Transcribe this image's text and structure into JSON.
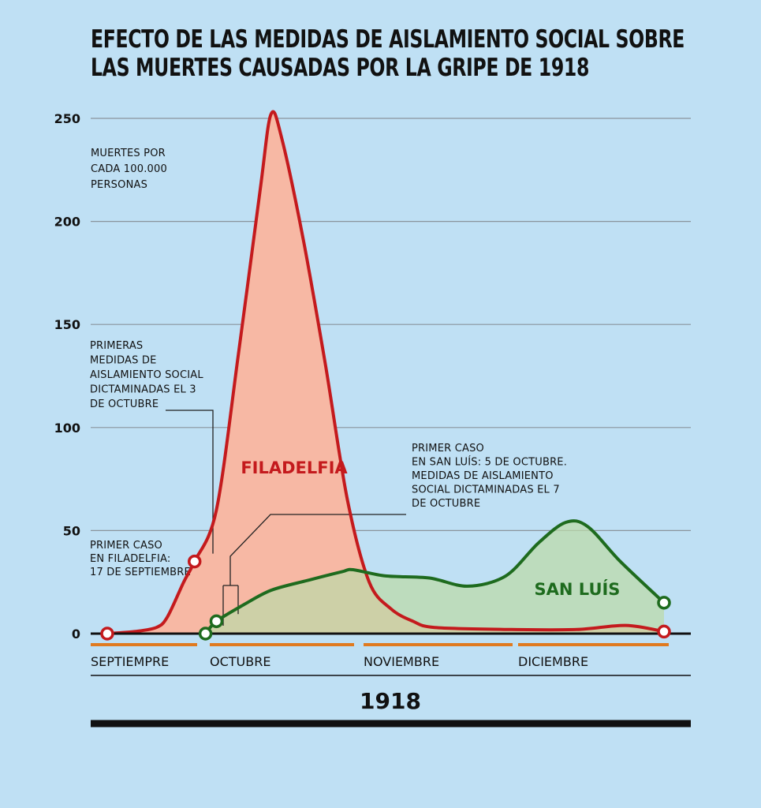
{
  "chart_data": {
    "type": "area",
    "title_lines": [
      "EFECTO DE LAS MEDIDAS DE AISLAMIENTO SOCIAL SOBRE",
      "LAS MUERTES CAUSADAS POR LA GRIPE DE 1918"
    ],
    "ylabel_lines": [
      "MUERTES POR",
      "CADA 100.000",
      "PERSONAS"
    ],
    "ylim": [
      0,
      250
    ],
    "yticks": [
      0,
      50,
      100,
      150,
      200,
      250
    ],
    "grid": true,
    "x_domain": [
      "1918-09-17",
      "1918-12-28"
    ],
    "x_months": [
      {
        "label": "SEPTIEMPRE",
        "start": "1918-09-17",
        "end": "1918-09-30"
      },
      {
        "label": "OCTUBRE",
        "start": "1918-10-01",
        "end": "1918-10-31"
      },
      {
        "label": "NOVIEMBRE",
        "start": "1918-11-01",
        "end": "1918-11-30"
      },
      {
        "label": "DICIEMBRE",
        "start": "1918-12-01",
        "end": "1918-12-28"
      }
    ],
    "year_label": "1918",
    "series": [
      {
        "name": "FILADELFIA",
        "color": "#c41a1d",
        "fill": "#f7b8a4",
        "points": [
          [
            "1918-09-17",
            0
          ],
          [
            "1918-09-22",
            1
          ],
          [
            "1918-09-26",
            3
          ],
          [
            "1918-09-28",
            8
          ],
          [
            "1918-10-01",
            25
          ],
          [
            "1918-10-03",
            35
          ],
          [
            "1918-10-07",
            60
          ],
          [
            "1918-10-11",
            135
          ],
          [
            "1918-10-15",
            215
          ],
          [
            "1918-10-17",
            252
          ],
          [
            "1918-10-19",
            240
          ],
          [
            "1918-10-23",
            190
          ],
          [
            "1918-10-27",
            130
          ],
          [
            "1918-10-31",
            65
          ],
          [
            "1918-11-04",
            25
          ],
          [
            "1918-11-08",
            12
          ],
          [
            "1918-11-12",
            6
          ],
          [
            "1918-11-16",
            3
          ],
          [
            "1918-11-30",
            2
          ],
          [
            "1918-12-12",
            2
          ],
          [
            "1918-12-21",
            4
          ],
          [
            "1918-12-28",
            1
          ]
        ],
        "markers": [
          [
            "1918-09-17",
            0
          ],
          [
            "1918-10-03",
            35
          ],
          [
            "1918-12-28",
            1
          ]
        ]
      },
      {
        "name": "SAN LUÍS",
        "color": "#1e6b1e",
        "fill": "#bdd9a8",
        "points": [
          [
            "1918-10-05",
            0
          ],
          [
            "1918-10-07",
            6
          ],
          [
            "1918-10-12",
            14
          ],
          [
            "1918-10-17",
            21
          ],
          [
            "1918-10-24",
            26
          ],
          [
            "1918-10-30",
            30
          ],
          [
            "1918-11-01",
            31
          ],
          [
            "1918-11-07",
            28
          ],
          [
            "1918-11-15",
            27
          ],
          [
            "1918-11-22",
            23
          ],
          [
            "1918-11-29",
            28
          ],
          [
            "1918-12-05",
            44
          ],
          [
            "1918-12-10",
            54
          ],
          [
            "1918-12-14",
            52
          ],
          [
            "1918-12-20",
            35
          ],
          [
            "1918-12-28",
            15
          ]
        ],
        "markers": [
          [
            "1918-10-05",
            0
          ],
          [
            "1918-10-07",
            6
          ],
          [
            "1918-12-28",
            15
          ]
        ]
      }
    ],
    "annotations": [
      {
        "lines": [
          "PRIMER CASO",
          "EN FILADELFIA:",
          "17 DE SEPTIEMBRE"
        ],
        "date": "1918-09-17",
        "value": 0
      },
      {
        "lines": [
          "PRIMERAS",
          "MEDIDAS DE",
          "AISLAMIENTO SOCIAL",
          "DICTAMINADAS EL 3",
          "DE OCTUBRE"
        ],
        "date": "1918-10-03",
        "value": 35
      },
      {
        "lines": [
          "PRIMER CASO",
          "EN SAN LUÍS: 5 DE OCTUBRE.",
          "MEDIDAS DE AISLAMIENTO",
          "SOCIAL DICTAMINADAS EL 7",
          "DE OCTUBRE"
        ],
        "date": "1918-10-07",
        "value": 6
      }
    ]
  }
}
